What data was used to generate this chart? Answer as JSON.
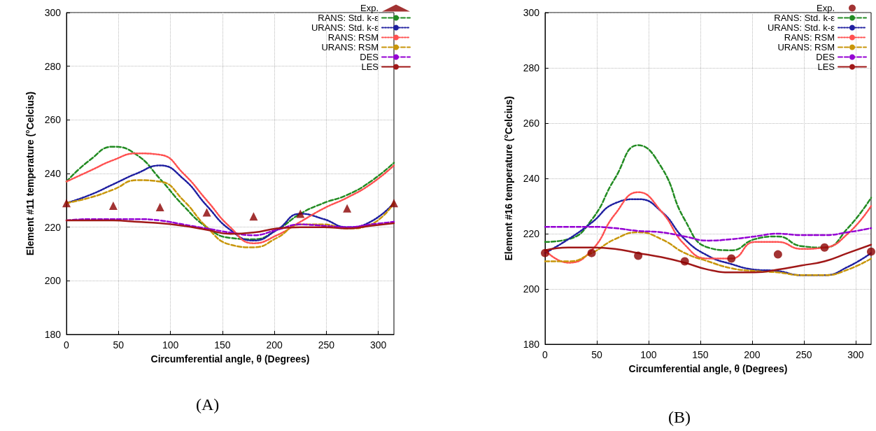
{
  "chart_data": [
    {
      "type": "line",
      "xlabel": "Circumferential angle, θ (Degrees)",
      "ylabel": "Element #11 temperature (°Celcius)",
      "annotations": [
        "(A)"
      ],
      "xlim": [
        0,
        315
      ],
      "xticks": [
        0,
        50,
        100,
        150,
        200,
        250,
        300
      ],
      "ylim": [
        180,
        300
      ],
      "yticks": [
        180,
        200,
        220,
        240,
        260,
        280,
        300
      ],
      "grid": true,
      "legend": "top right",
      "x": [
        0,
        22.5,
        45,
        67.5,
        90,
        112.5,
        135,
        157.5,
        180,
        202.5,
        225,
        247.5,
        270,
        292.5,
        315
      ],
      "series": [
        {
          "name": "Exp.",
          "type": "scatter",
          "marker": "triangle",
          "color": "#8b0000",
          "x": [
            0,
            45,
            90,
            135,
            180,
            225,
            270,
            315
          ],
          "values": [
            229,
            228,
            227.5,
            225.5,
            224,
            225,
            227,
            229
          ]
        },
        {
          "name": "RANS: Std. k-ε",
          "line_style": "dashed",
          "color": "#228b22",
          "values": [
            237,
            245,
            250,
            247,
            238,
            228,
            220,
            216,
            215.5,
            219,
            225,
            229,
            232,
            237,
            244
          ]
        },
        {
          "name": "URANS: Std. k-ε",
          "line_style": "dotted",
          "color": "#1f1fa0",
          "values": [
            229,
            232,
            236,
            240,
            243,
            238,
            228,
            219,
            215,
            219,
            225,
            223,
            220,
            222,
            229
          ]
        },
        {
          "name": "RANS: RSM",
          "line_style": "dotted",
          "color": "#ff5050",
          "values": [
            237,
            241,
            245,
            247.5,
            247,
            240,
            230,
            220,
            214,
            217,
            222,
            227,
            231,
            236,
            243
          ]
        },
        {
          "name": "URANS: RSM",
          "line_style": "dashed",
          "color": "#c8960a",
          "values": [
            229,
            231,
            234,
            237.5,
            237,
            230,
            220,
            213.5,
            212.5,
            216,
            221,
            221,
            219.5,
            221,
            229
          ]
        },
        {
          "name": "DES",
          "line_style": "dashed",
          "color": "#9400d3",
          "values": [
            222.5,
            223,
            223,
            223,
            222.5,
            221,
            219.5,
            218,
            217,
            219,
            221,
            220.5,
            220,
            221,
            222
          ]
        },
        {
          "name": "LES",
          "line_style": "solid",
          "color": "#a01818",
          "values": [
            222.5,
            222.5,
            222.5,
            222,
            221.5,
            220.5,
            219,
            217.5,
            218,
            219.5,
            220,
            220,
            219.5,
            220.5,
            221.5
          ]
        }
      ]
    },
    {
      "type": "line",
      "xlabel": "Circumferential angle, θ (Degrees)",
      "ylabel": "Element #16 temperature (°Celcius)",
      "annotations": [
        "(B)"
      ],
      "xlim": [
        0,
        315
      ],
      "xticks": [
        0,
        50,
        100,
        150,
        200,
        250,
        300
      ],
      "ylim": [
        180,
        300
      ],
      "yticks": [
        180,
        200,
        220,
        240,
        260,
        280,
        300
      ],
      "grid": true,
      "legend": "top right",
      "x": [
        0,
        22.5,
        45,
        67.5,
        90,
        112.5,
        135,
        157.5,
        180,
        202.5,
        225,
        247.5,
        270,
        292.5,
        315
      ],
      "series": [
        {
          "name": "Exp.",
          "type": "scatter",
          "marker": "circle",
          "color": "#8b0000",
          "x": [
            0,
            45,
            90,
            135,
            180,
            225,
            270,
            315
          ],
          "values": [
            213,
            213,
            212,
            210,
            211,
            212.5,
            215,
            213.5
          ]
        },
        {
          "name": "RANS: Std. k-ε",
          "line_style": "dashed",
          "color": "#228b22",
          "values": [
            217,
            218,
            225,
            240,
            252,
            244,
            225,
            215,
            214,
            218,
            219,
            215.5,
            215,
            222,
            233
          ]
        },
        {
          "name": "URANS: Std. k-ε",
          "line_style": "dotted",
          "color": "#1f1fa0",
          "values": [
            213,
            218,
            224,
            231,
            232.5,
            228,
            218,
            212,
            209,
            207,
            206.5,
            205,
            205,
            208,
            213
          ]
        },
        {
          "name": "RANS: RSM",
          "line_style": "dotted",
          "color": "#ff5050",
          "values": [
            214,
            209.5,
            214,
            227,
            235,
            228,
            216,
            211,
            211,
            217,
            217,
            214.5,
            215,
            220,
            230
          ]
        },
        {
          "name": "URANS: RSM",
          "line_style": "dashed",
          "color": "#c8960a",
          "values": [
            210,
            210,
            213,
            218,
            220.5,
            218,
            213,
            210,
            207.5,
            206.5,
            206,
            205,
            205,
            207,
            211
          ]
        },
        {
          "name": "DES",
          "line_style": "dashed",
          "color": "#9400d3",
          "values": [
            222.5,
            222.5,
            222.5,
            222,
            221,
            220.5,
            219,
            217.5,
            218,
            219,
            220,
            219.5,
            219.5,
            220.5,
            222
          ]
        },
        {
          "name": "LES",
          "line_style": "solid",
          "color": "#a01818",
          "values": [
            214,
            215,
            215,
            214.5,
            213,
            211.5,
            209.5,
            207,
            206,
            206,
            207,
            208.5,
            210,
            213,
            216
          ]
        }
      ]
    }
  ]
}
